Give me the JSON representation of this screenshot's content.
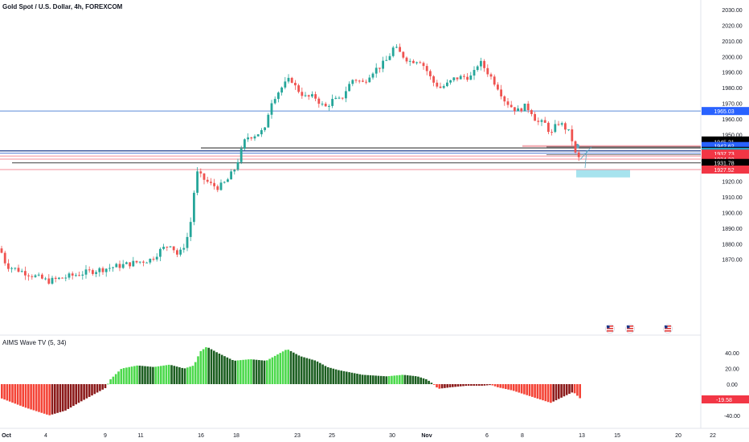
{
  "header": {
    "symbol_title": "Gold Spot / U.S. Dollar, 4h, FOREXCOM"
  },
  "indicator": {
    "title": "AIMS Wave TV (5, 34)",
    "value_label": "-19.58",
    "ticks": [
      "40.00",
      "20.00",
      "0.00",
      "-40.00"
    ]
  },
  "price_axis": {
    "ticks": [
      2030,
      2020,
      2010,
      2000,
      1990,
      1980,
      1970,
      1960,
      1950,
      1940,
      1930,
      1920,
      1910,
      1900,
      1890,
      1880,
      1870
    ],
    "tick_labels": [
      "2030.00",
      "2020.00",
      "2010.00",
      "2000.00",
      "1990.00",
      "1980.00",
      "1970.00",
      "1960.00",
      "1950.00",
      "1940.00",
      "1930.00",
      "1920.00",
      "1910.00",
      "1900.00",
      "1890.00",
      "1880.00",
      "1870.00"
    ]
  },
  "price_labels": [
    {
      "text": "1965.03",
      "price": 1965.03,
      "bg": "#2962ff",
      "fg": "#ffffff"
    },
    {
      "text": "1946.16",
      "price": 1946.16,
      "bg": "#000000",
      "fg": "#ffffff"
    },
    {
      "text": "1945.21",
      "price": 1945.21,
      "bg": "#000000",
      "fg": "#ffffff"
    },
    {
      "text": "1942.62",
      "price": 1942.62,
      "bg": "#2962ff",
      "fg": "#ffffff"
    },
    {
      "text": "1939.51",
      "price": 1939.51,
      "bg": "#000000",
      "fg": "#ffffff"
    },
    {
      "text": "1938.93",
      "price": 1938.93,
      "bg": "#26a0c5",
      "fg": "#ffffff"
    },
    {
      "text": "1937.73",
      "price": 1937.73,
      "bg": "#f23645",
      "fg": "#ffffff"
    },
    {
      "text": "1934.22",
      "price": 1934.22,
      "bg": "#f23645",
      "fg": "#ffffff"
    },
    {
      "text": "1931.78",
      "price": 1931.78,
      "bg": "#000000",
      "fg": "#ffffff"
    },
    {
      "text": "1927.52",
      "price": 1927.52,
      "bg": "#f23645",
      "fg": "#ffffff"
    }
  ],
  "time_axis": {
    "labels": [
      "Oct",
      "4",
      "9",
      "11",
      "16",
      "18",
      "23",
      "25",
      "30",
      "Nov",
      "6",
      "8",
      "13",
      "15",
      "20",
      "22"
    ]
  },
  "colors": {
    "up": "#26a69a",
    "down": "#ef5350",
    "osc_green": "#4cd94c",
    "osc_dark_green": "#1b5e20",
    "osc_red": "#f44336",
    "osc_dark_red": "#8b1a1a",
    "blue_line": "#2962ff",
    "red_line": "#f23645"
  },
  "event_icons": [
    "us-flag-icon",
    "us-flag-icon",
    "us-flag-icon"
  ]
}
